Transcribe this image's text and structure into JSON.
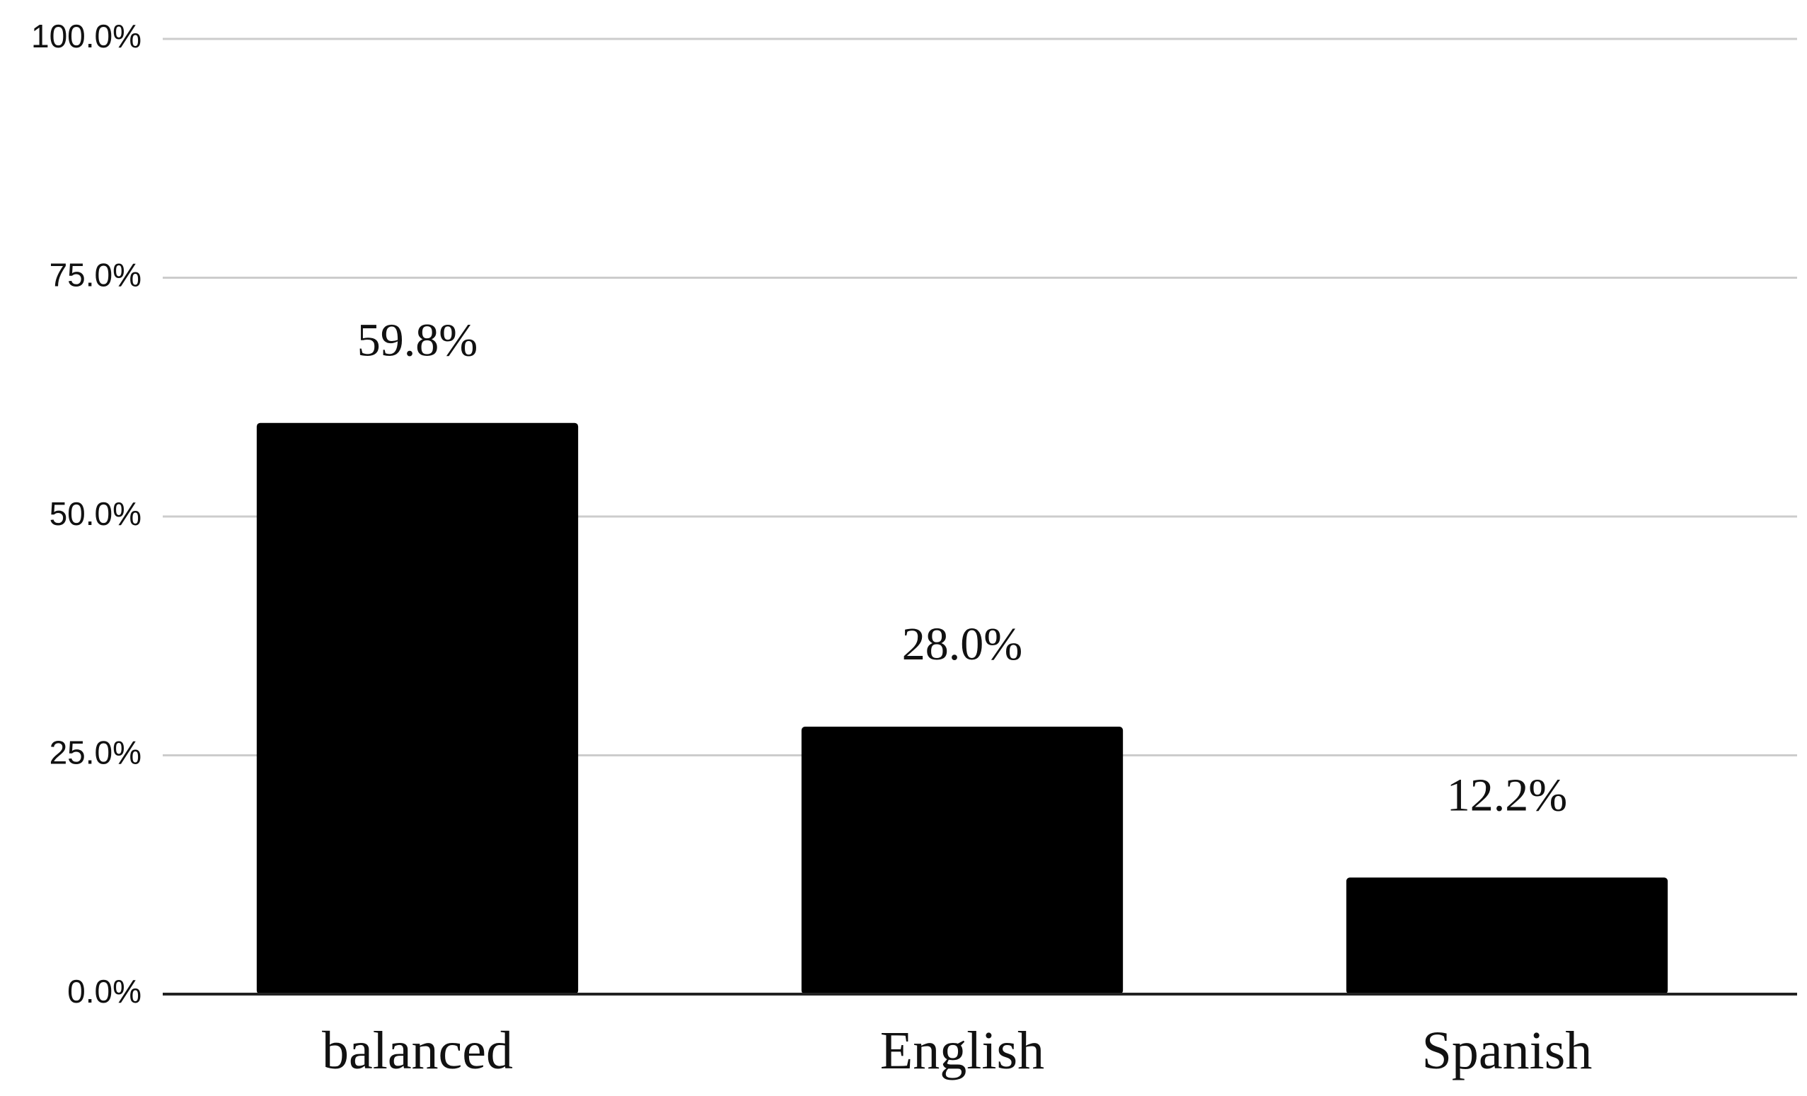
{
  "chart_data": {
    "type": "bar",
    "title": "",
    "xlabel": "",
    "ylabel": "",
    "categories": [
      "balanced",
      "English",
      "Spanish"
    ],
    "values": [
      59.8,
      28.0,
      12.2
    ],
    "data_labels": [
      "59.8%",
      "28.0%",
      "12.2%"
    ],
    "ylim": [
      0,
      100
    ],
    "yticks": [
      0,
      25,
      50,
      75,
      100
    ],
    "ytick_labels": [
      "0.0%",
      "25.0%",
      "50.0%",
      "75.0%",
      "100.0%"
    ],
    "grid": true,
    "legend": "none",
    "colors": {
      "bar": "#000000",
      "grid": "#cccccc",
      "axis": "#222222",
      "text": "#111111"
    }
  }
}
